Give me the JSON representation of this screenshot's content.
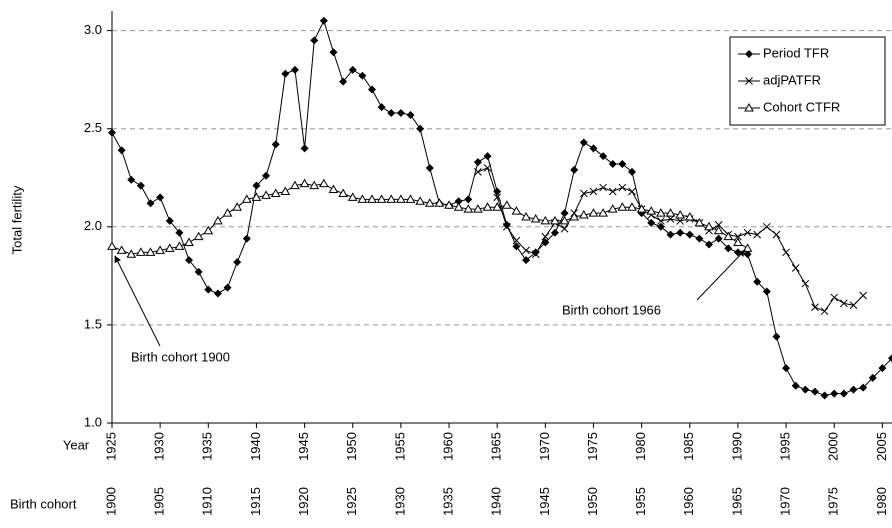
{
  "chart_data": {
    "type": "line",
    "ylabel": "Total fertility",
    "xlabel": "Year",
    "x2label": "Birth cohort",
    "x": [
      1925,
      1926,
      1927,
      1928,
      1929,
      1930,
      1931,
      1932,
      1933,
      1934,
      1935,
      1936,
      1937,
      1938,
      1939,
      1940,
      1941,
      1942,
      1943,
      1944,
      1945,
      1946,
      1947,
      1948,
      1949,
      1950,
      1951,
      1952,
      1953,
      1954,
      1955,
      1956,
      1957,
      1958,
      1959,
      1960,
      1961,
      1962,
      1963,
      1964,
      1965,
      1966,
      1967,
      1968,
      1969,
      1970,
      1971,
      1972,
      1973,
      1974,
      1975,
      1976,
      1977,
      1978,
      1979,
      1980,
      1981,
      1982,
      1983,
      1984,
      1985,
      1986,
      1987,
      1988,
      1989,
      1990,
      1991,
      1992,
      1993,
      1994,
      1995,
      1996,
      1997,
      1998,
      1999,
      2000,
      2001,
      2002,
      2003,
      2004,
      2005,
      2006
    ],
    "series": [
      {
        "name": "Period TFR",
        "color": "#000000",
        "marker": "diamond",
        "values": [
          2.48,
          2.39,
          2.24,
          2.21,
          2.12,
          2.15,
          2.03,
          1.97,
          1.83,
          1.77,
          1.68,
          1.66,
          1.69,
          1.82,
          1.94,
          2.21,
          2.26,
          2.42,
          2.78,
          2.8,
          2.4,
          2.95,
          3.05,
          2.89,
          2.74,
          2.8,
          2.77,
          2.7,
          2.61,
          2.58,
          2.58,
          2.57,
          2.5,
          2.3,
          2.12,
          2.11,
          2.13,
          2.14,
          2.33,
          2.36,
          2.18,
          2.01,
          1.9,
          1.83,
          1.87,
          1.92,
          1.97,
          2.07,
          2.29,
          2.43,
          2.4,
          2.36,
          2.32,
          2.32,
          2.28,
          2.07,
          2.02,
          2.0,
          1.96,
          1.97,
          1.96,
          1.94,
          1.91,
          1.94,
          1.89,
          1.87,
          1.86,
          1.72,
          1.67,
          1.44,
          1.28,
          1.19,
          1.17,
          1.16,
          1.14,
          1.15,
          1.15,
          1.17,
          1.18,
          1.23,
          1.28,
          1.33
        ]
      },
      {
        "name": "adjPATFR",
        "color": "#000000",
        "marker": "x",
        "values": [
          null,
          null,
          null,
          null,
          null,
          null,
          null,
          null,
          null,
          null,
          null,
          null,
          null,
          null,
          null,
          null,
          null,
          null,
          null,
          null,
          null,
          null,
          null,
          null,
          null,
          null,
          null,
          null,
          null,
          null,
          null,
          null,
          null,
          null,
          null,
          null,
          null,
          null,
          2.28,
          2.3,
          2.15,
          2.0,
          1.93,
          1.88,
          1.86,
          1.95,
          2.02,
          1.99,
          2.07,
          2.17,
          2.18,
          2.2,
          2.18,
          2.2,
          2.18,
          2.09,
          2.06,
          2.03,
          2.04,
          2.03,
          2.04,
          2.02,
          1.98,
          2.01,
          1.96,
          1.95,
          1.97,
          1.96,
          2.0,
          1.96,
          1.87,
          1.79,
          1.71,
          1.59,
          1.57,
          1.64,
          1.61,
          1.6,
          1.65,
          null,
          null,
          null
        ]
      },
      {
        "name": "Cohort CTFR",
        "color": "#000000",
        "marker": "triangle",
        "values": [
          1.9,
          1.88,
          1.86,
          1.87,
          1.87,
          1.88,
          1.89,
          1.9,
          1.92,
          1.95,
          1.98,
          2.03,
          2.07,
          2.1,
          2.14,
          2.15,
          2.16,
          2.17,
          2.18,
          2.21,
          2.22,
          2.21,
          2.22,
          2.19,
          2.17,
          2.15,
          2.14,
          2.14,
          2.14,
          2.14,
          2.14,
          2.14,
          2.13,
          2.12,
          2.12,
          2.11,
          2.1,
          2.09,
          2.09,
          2.1,
          2.1,
          2.11,
          2.08,
          2.05,
          2.04,
          2.03,
          2.03,
          2.03,
          2.05,
          2.06,
          2.07,
          2.07,
          2.09,
          2.1,
          2.1,
          2.09,
          2.08,
          2.07,
          2.07,
          2.06,
          2.05,
          2.02,
          2.0,
          1.98,
          1.95,
          1.92,
          1.89,
          null,
          null,
          null,
          null,
          null,
          null,
          null,
          null,
          null,
          null,
          null,
          null,
          null,
          null,
          null
        ]
      }
    ],
    "xlim": [
      1925,
      2006
    ],
    "xticks": [
      1925,
      1930,
      1935,
      1940,
      1945,
      1950,
      1955,
      1960,
      1965,
      1970,
      1975,
      1980,
      1985,
      1990,
      1995,
      2000,
      2005
    ],
    "x2lim": [
      1900,
      1981
    ],
    "x2ticks": [
      1900,
      1905,
      1910,
      1915,
      1920,
      1925,
      1930,
      1935,
      1940,
      1945,
      1950,
      1955,
      1960,
      1965,
      1970,
      1975,
      1980
    ],
    "ylim": [
      1.0,
      3.1
    ],
    "yticks": [
      {
        "value": 1.0,
        "label": "1.0"
      },
      {
        "value": 1.5,
        "label": "1.5"
      },
      {
        "value": 2.0,
        "label": "2.0"
      },
      {
        "value": 2.5,
        "label": "2.5"
      },
      {
        "value": 3.0,
        "label": "3.0"
      }
    ],
    "grid": true,
    "legend": "upper right",
    "annotations": [
      {
        "text": "Birth cohort 1900"
      },
      {
        "text": "Birth cohort 1966"
      }
    ]
  }
}
